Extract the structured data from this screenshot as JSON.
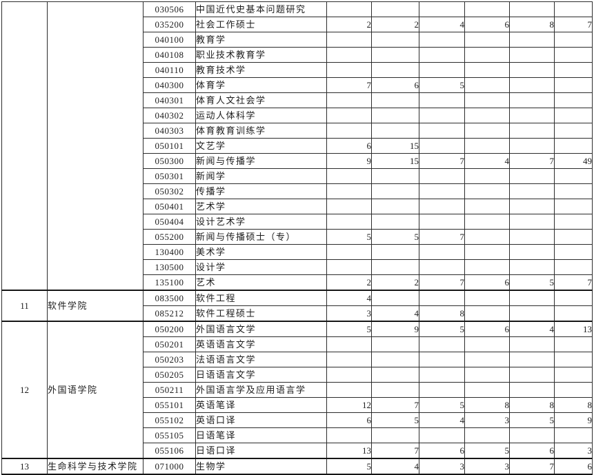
{
  "document": {
    "kind": "admissions-quota-table-page",
    "border_color": "#2b2b2b",
    "group_border_color": "#151515",
    "text_color": "#1c1c1c",
    "background_color": "#ffffff",
    "value_columns_count": 6
  },
  "table": {
    "groups": [
      {
        "index": "",
        "college": "",
        "rows": [
          {
            "code": "030506",
            "name": "中国近代史基本问题研究",
            "values": [
              "",
              "",
              "",
              "",
              "",
              ""
            ]
          },
          {
            "code": "035200",
            "name": "社会工作硕士",
            "values": [
              "2",
              "2",
              "4",
              "6",
              "8",
              "7"
            ]
          },
          {
            "code": "040100",
            "name": "教育学",
            "values": [
              "",
              "",
              "",
              "",
              "",
              ""
            ]
          },
          {
            "code": "040108",
            "name": "职业技术教育学",
            "values": [
              "",
              "",
              "",
              "",
              "",
              ""
            ]
          },
          {
            "code": "040110",
            "name": "教育技术学",
            "values": [
              "",
              "",
              "",
              "",
              "",
              ""
            ]
          },
          {
            "code": "040300",
            "name": "体育学",
            "values": [
              "7",
              "6",
              "5",
              "",
              "",
              ""
            ]
          },
          {
            "code": "040301",
            "name": "体育人文社会学",
            "values": [
              "",
              "",
              "",
              "",
              "",
              ""
            ]
          },
          {
            "code": "040302",
            "name": "运动人体科学",
            "values": [
              "",
              "",
              "",
              "",
              "",
              ""
            ]
          },
          {
            "code": "040303",
            "name": "体育教育训练学",
            "values": [
              "",
              "",
              "",
              "",
              "",
              ""
            ]
          },
          {
            "code": "050101",
            "name": "文艺学",
            "values": [
              "6",
              "15",
              "",
              "",
              "",
              ""
            ]
          },
          {
            "code": "050300",
            "name": "新闻与传播学",
            "values": [
              "9",
              "15",
              "7",
              "4",
              "7",
              "49"
            ]
          },
          {
            "code": "050301",
            "name": "新闻学",
            "values": [
              "",
              "",
              "",
              "",
              "",
              ""
            ]
          },
          {
            "code": "050302",
            "name": "传播学",
            "values": [
              "",
              "",
              "",
              "",
              "",
              ""
            ]
          },
          {
            "code": "050401",
            "name": "艺术学",
            "values": [
              "",
              "",
              "",
              "",
              "",
              ""
            ]
          },
          {
            "code": "050404",
            "name": "设计艺术学",
            "values": [
              "",
              "",
              "",
              "",
              "",
              ""
            ]
          },
          {
            "code": "055200",
            "name": "新闻与传播硕士（专）",
            "values": [
              "5",
              "5",
              "7",
              "",
              "",
              ""
            ]
          },
          {
            "code": "130400",
            "name": "美术学",
            "values": [
              "",
              "",
              "",
              "",
              "",
              ""
            ]
          },
          {
            "code": "130500",
            "name": "设计学",
            "values": [
              "",
              "",
              "",
              "",
              "",
              ""
            ]
          },
          {
            "code": "135100",
            "name": "艺术",
            "values": [
              "2",
              "2",
              "7",
              "6",
              "5",
              "7"
            ]
          }
        ]
      },
      {
        "index": "11",
        "college": "软件学院",
        "rows": [
          {
            "code": "083500",
            "name": "软件工程",
            "values": [
              "4",
              "",
              "",
              "",
              "",
              ""
            ]
          },
          {
            "code": "085212",
            "name": "软件工程硕士",
            "values": [
              "3",
              "4",
              "8",
              "",
              "",
              ""
            ]
          }
        ]
      },
      {
        "index": "12",
        "college": "外国语学院",
        "rows": [
          {
            "code": "050200",
            "name": "外国语言文学",
            "values": [
              "5",
              "9",
              "5",
              "6",
              "4",
              "13"
            ]
          },
          {
            "code": "050201",
            "name": "英语语言文学",
            "values": [
              "",
              "",
              "",
              "",
              "",
              ""
            ]
          },
          {
            "code": "050203",
            "name": "法语语言文学",
            "values": [
              "",
              "",
              "",
              "",
              "",
              ""
            ]
          },
          {
            "code": "050205",
            "name": "日语语言文学",
            "values": [
              "",
              "",
              "",
              "",
              "",
              ""
            ]
          },
          {
            "code": "050211",
            "name": "外国语言学及应用语言学",
            "values": [
              "",
              "",
              "",
              "",
              "",
              ""
            ]
          },
          {
            "code": "055101",
            "name": "英语笔译",
            "values": [
              "12",
              "7",
              "5",
              "8",
              "8",
              "8"
            ]
          },
          {
            "code": "055102",
            "name": "英语口译",
            "values": [
              "6",
              "5",
              "4",
              "3",
              "5",
              "9"
            ]
          },
          {
            "code": "055105",
            "name": "日语笔译",
            "values": [
              "",
              "",
              "",
              "",
              "",
              ""
            ]
          },
          {
            "code": "055106",
            "name": "日语口译",
            "values": [
              "13",
              "7",
              "6",
              "5",
              "6",
              "3"
            ]
          }
        ]
      },
      {
        "index": "13",
        "college": "生命科学与技术学院",
        "rows": [
          {
            "code": "071000",
            "name": "生物学",
            "values": [
              "5",
              "4",
              "3",
              "3",
              "7",
              "6"
            ]
          }
        ]
      }
    ]
  }
}
